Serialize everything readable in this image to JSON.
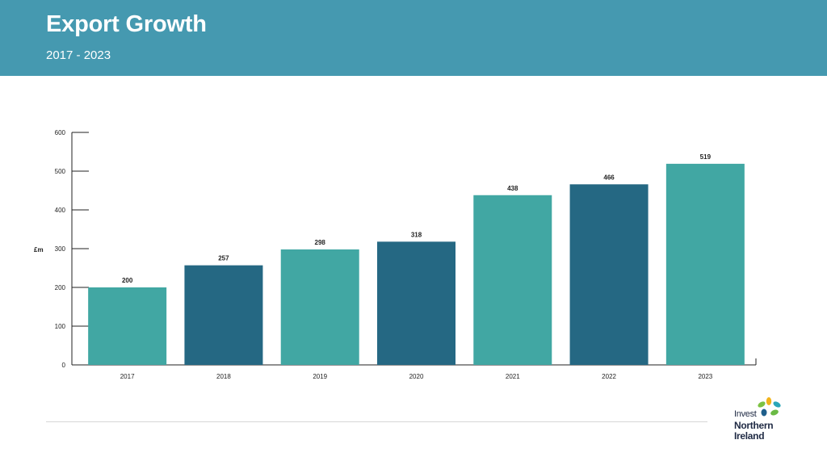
{
  "header": {
    "title": "Export Growth",
    "subtitle": "2017 - 2023"
  },
  "chart_data": {
    "type": "bar",
    "title": "",
    "xlabel": "",
    "ylabel": "£m",
    "categories": [
      "2017",
      "2018",
      "2019",
      "2020",
      "2021",
      "2022",
      "2023"
    ],
    "values": [
      200,
      257,
      298,
      318,
      438,
      466,
      519
    ],
    "data_labels": [
      "200",
      "257",
      "298",
      "318",
      "438",
      "466",
      "519"
    ],
    "bar_colors": [
      "#41a7a3",
      "#256883",
      "#41a7a3",
      "#256883",
      "#41a7a3",
      "#256883",
      "#41a7a3"
    ],
    "ylim": [
      0,
      600
    ],
    "yticks": [
      0,
      100,
      200,
      300,
      400,
      500,
      600
    ],
    "ytick_labels": [
      "0",
      "100",
      "200",
      "300",
      "400",
      "500",
      "600"
    ],
    "grid": false,
    "legend": "none"
  },
  "logo": {
    "line1": "Invest",
    "line2": "Northern",
    "line3": "Ireland",
    "colors": [
      "#7cc242",
      "#f2b31b",
      "#2aa6b8",
      "#1f5f8b",
      "#6aba45"
    ]
  }
}
